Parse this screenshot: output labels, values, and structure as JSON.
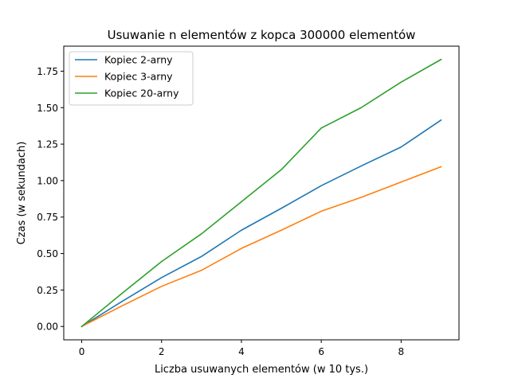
{
  "chart_data": {
    "type": "line",
    "title": "Usuwanie n elementów z kopca 300000 elementów",
    "xlabel": "Liczba usuwanych elementów (w 10 tys.)",
    "ylabel": "Czas (w sekundach)",
    "xlim": [
      -0.45,
      9.45
    ],
    "ylim": [
      -0.0915,
      1.9215
    ],
    "x": [
      0,
      1,
      2,
      3,
      4,
      5,
      6,
      7,
      8,
      9
    ],
    "xticks": [
      0,
      2,
      4,
      6,
      8
    ],
    "xtick_labels": [
      "0",
      "2",
      "4",
      "6",
      "8"
    ],
    "yticks": [
      0,
      0.25,
      0.5,
      0.75,
      1.0,
      1.25,
      1.5,
      1.75
    ],
    "ytick_labels": [
      "0.00",
      "0.25",
      "0.50",
      "0.75",
      "1.00",
      "1.25",
      "1.50",
      "1.75"
    ],
    "grid": false,
    "legend_position": "top-left",
    "series": [
      {
        "name": "Kopiec 2-arny",
        "color": "#1f77b4",
        "values": [
          0.0,
          0.17,
          0.335,
          0.48,
          0.66,
          0.81,
          0.965,
          1.1,
          1.23,
          1.415
        ]
      },
      {
        "name": "Kopiec 3-arny",
        "color": "#ff7f0e",
        "values": [
          0.0,
          0.14,
          0.275,
          0.385,
          0.535,
          0.66,
          0.79,
          0.885,
          0.99,
          1.095
        ]
      },
      {
        "name": "Kopiec 20-arny",
        "color": "#2ca02c",
        "values": [
          0.0,
          0.225,
          0.445,
          0.635,
          0.855,
          1.075,
          1.36,
          1.5,
          1.675,
          1.83
        ]
      }
    ]
  }
}
